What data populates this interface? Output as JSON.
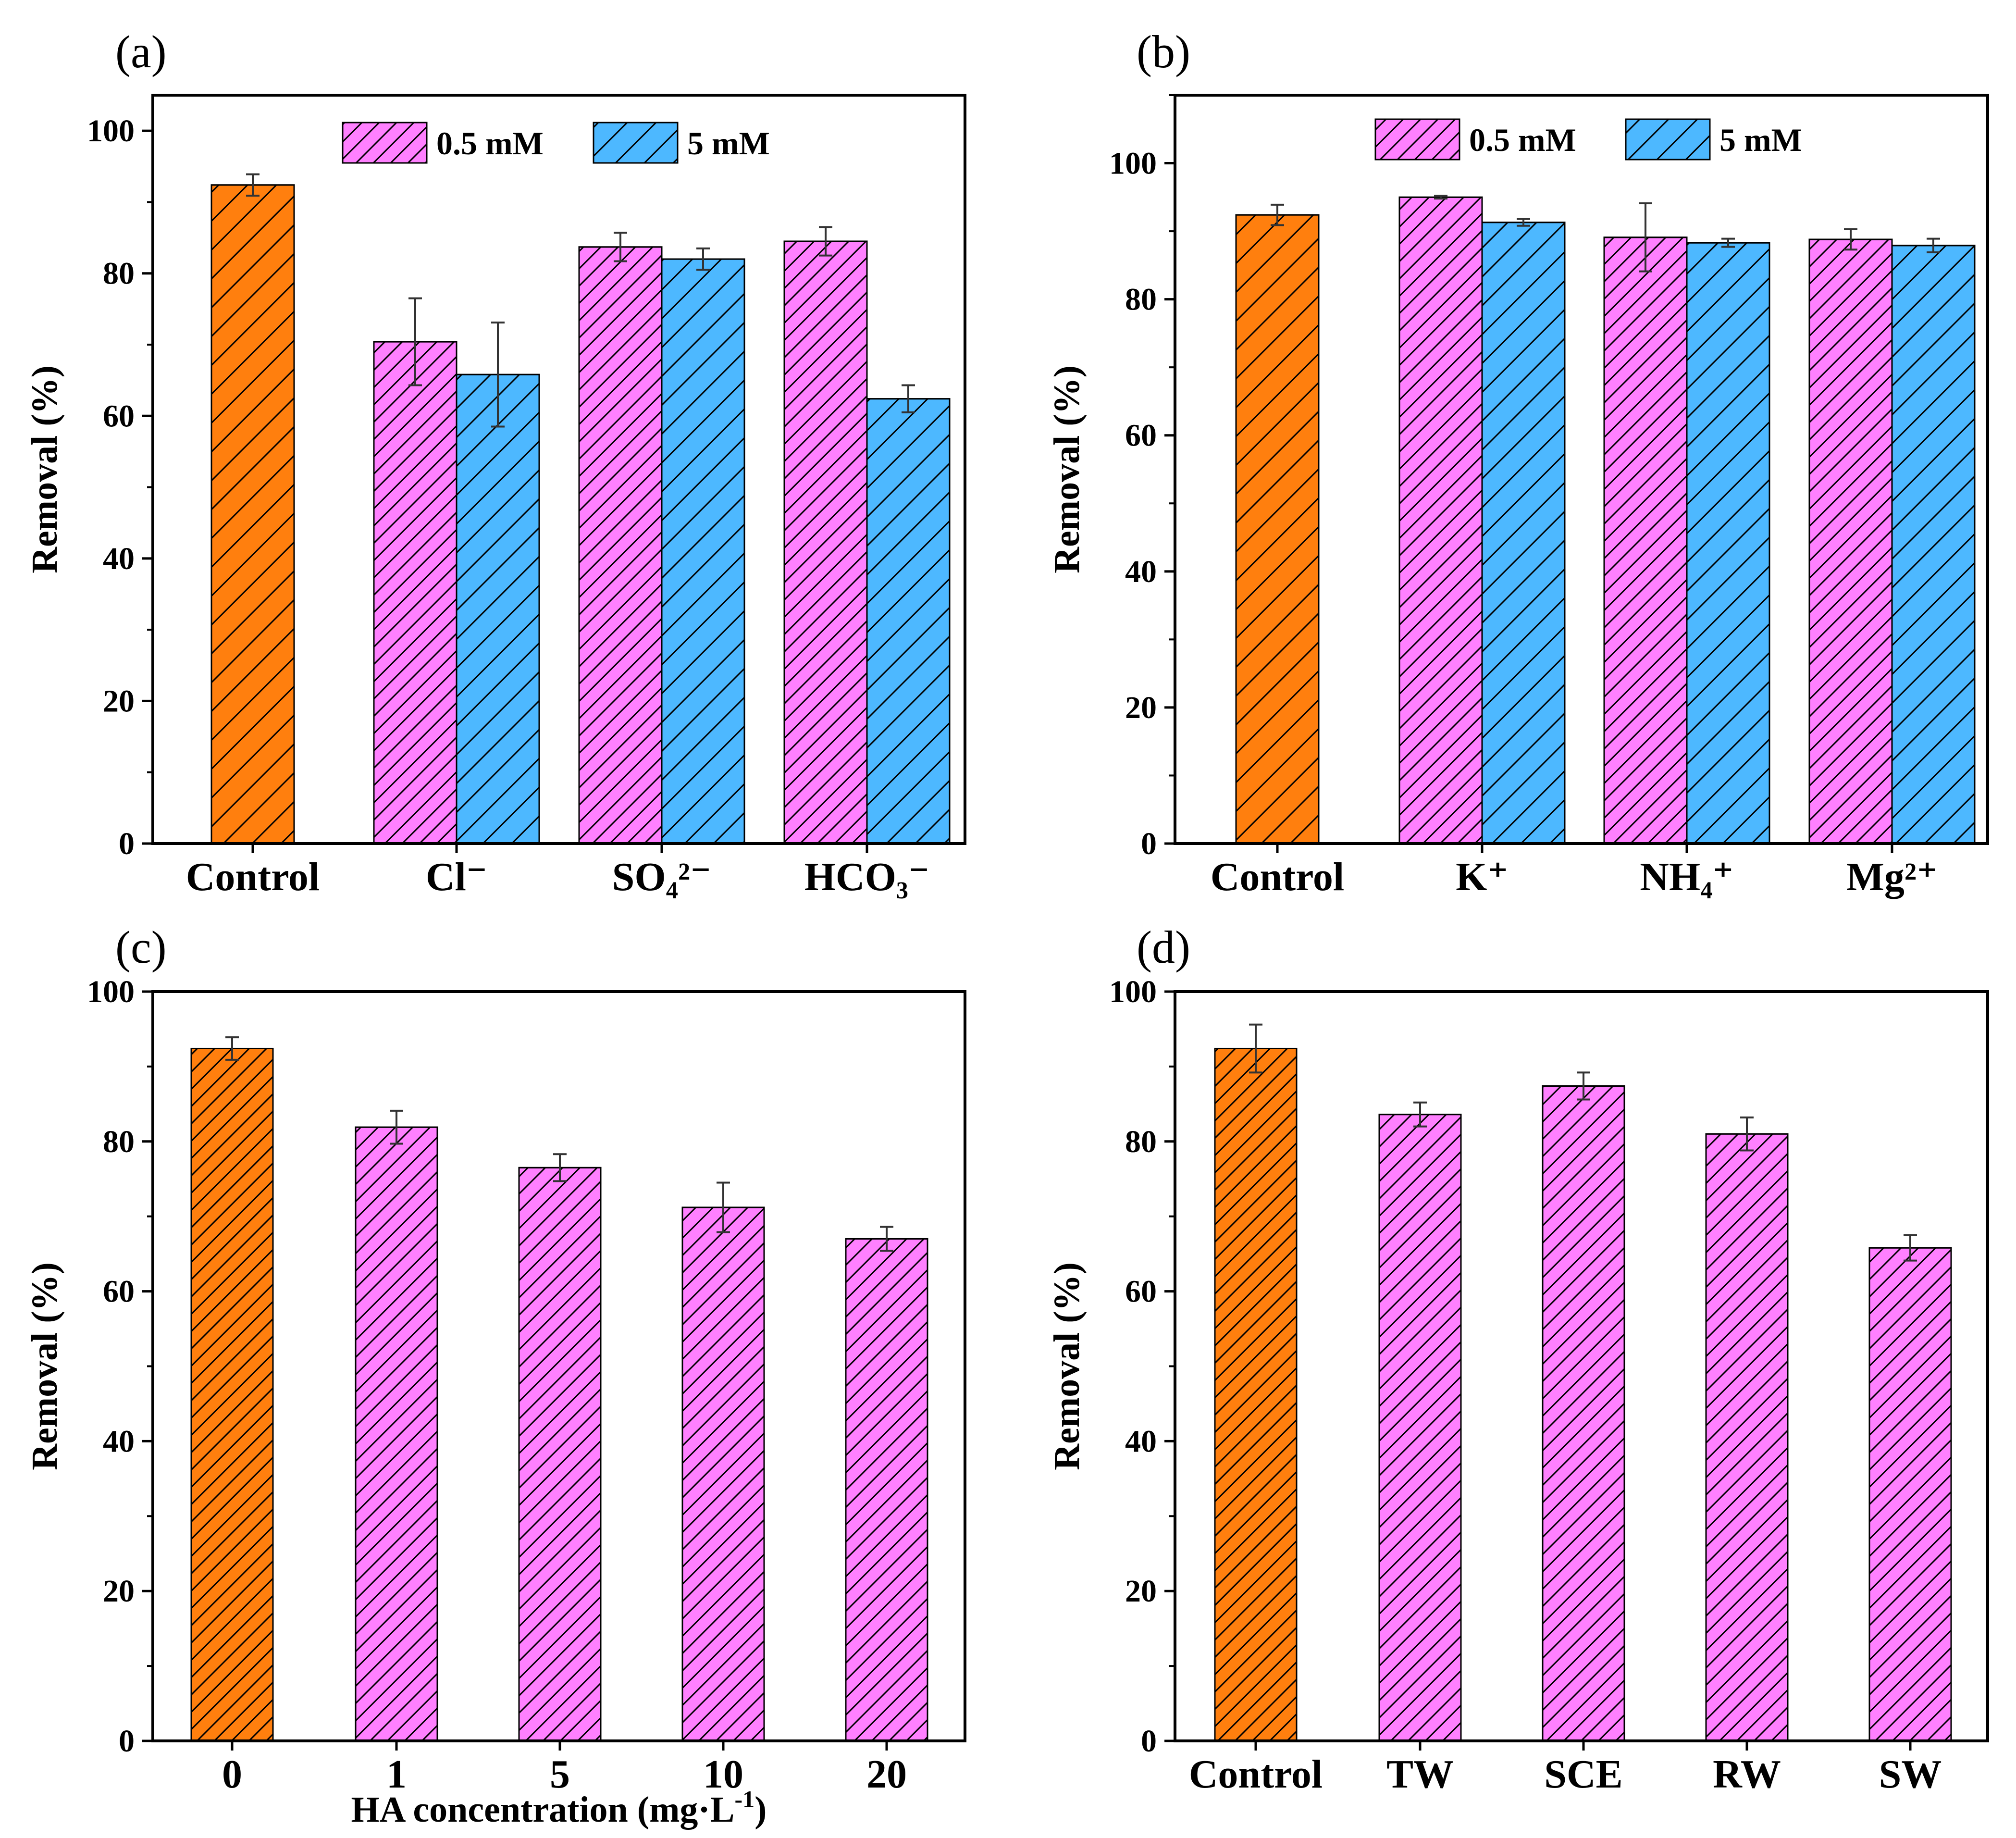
{
  "colors": {
    "control": "#ff7f0e",
    "low": "#ff80ff",
    "high": "#4db8ff",
    "axis": "#000000",
    "hatch": "#000000"
  },
  "chart_data": [
    {
      "id": "a",
      "panel": "(a)",
      "type": "bar",
      "ylabel": "Removal (%)",
      "xlabel": "",
      "ylim": [
        0,
        105
      ],
      "yticks": [
        0,
        20,
        40,
        60,
        80,
        100
      ],
      "legend": [
        "0.5 mM",
        "5 mM"
      ],
      "legend_position": "top-center",
      "categories": [
        "Control",
        "Cl⁻",
        "SO₄²⁻",
        "HCO₃⁻"
      ],
      "bars": [
        {
          "category": 0,
          "series": "control",
          "value": 92.4,
          "error": 1.5
        },
        {
          "category": 1,
          "series": "0.5 mM",
          "value": 70.4,
          "error": 6.1
        },
        {
          "category": 1,
          "series": "5 mM",
          "value": 65.8,
          "error": 7.3
        },
        {
          "category": 2,
          "series": "0.5 mM",
          "value": 83.7,
          "error": 2.0
        },
        {
          "category": 2,
          "series": "5 mM",
          "value": 82.0,
          "error": 1.5
        },
        {
          "category": 3,
          "series": "0.5 mM",
          "value": 84.5,
          "error": 2.0
        },
        {
          "category": 3,
          "series": "5 mM",
          "value": 62.4,
          "error": 1.9
        }
      ]
    },
    {
      "id": "b",
      "panel": "(b)",
      "type": "bar",
      "ylabel": "Removal (%)",
      "xlabel": "",
      "ylim": [
        0,
        110
      ],
      "yticks": [
        0,
        20,
        40,
        60,
        80,
        100
      ],
      "legend": [
        "0.5 mM",
        "5 mM"
      ],
      "legend_position": "top-center",
      "categories": [
        "Control",
        "K⁺",
        "NH₄⁺",
        "Mg²⁺"
      ],
      "bars": [
        {
          "category": 0,
          "series": "control",
          "value": 92.4,
          "error": 1.5
        },
        {
          "category": 1,
          "series": "0.5 mM",
          "value": 95.0,
          "error": 0.2
        },
        {
          "category": 1,
          "series": "5 mM",
          "value": 91.3,
          "error": 0.5
        },
        {
          "category": 2,
          "series": "0.5 mM",
          "value": 89.1,
          "error": 5.0
        },
        {
          "category": 2,
          "series": "5 mM",
          "value": 88.3,
          "error": 0.6
        },
        {
          "category": 3,
          "series": "0.5 mM",
          "value": 88.8,
          "error": 1.5
        },
        {
          "category": 3,
          "series": "5 mM",
          "value": 87.9,
          "error": 1.0
        }
      ]
    },
    {
      "id": "c",
      "panel": "(c)",
      "type": "bar",
      "ylabel": "Removal (%)",
      "xlabel_prefix": "HA concentration (mg·L",
      "xlabel_sup": "-1",
      "xlabel_suffix": ")",
      "ylim": [
        0,
        100
      ],
      "yticks": [
        0,
        20,
        40,
        60,
        80,
        100
      ],
      "categories": [
        "0",
        "1",
        "5",
        "10",
        "20"
      ],
      "bars": [
        {
          "category": 0,
          "series": "control",
          "value": 92.4,
          "error": 1.5
        },
        {
          "category": 1,
          "series": "0.5 mM",
          "value": 81.9,
          "error": 2.2
        },
        {
          "category": 2,
          "series": "0.5 mM",
          "value": 76.5,
          "error": 1.8
        },
        {
          "category": 3,
          "series": "0.5 mM",
          "value": 71.2,
          "error": 3.3
        },
        {
          "category": 4,
          "series": "0.5 mM",
          "value": 67.0,
          "error": 1.6
        }
      ]
    },
    {
      "id": "d",
      "panel": "(d)",
      "type": "bar",
      "ylabel": "Removal (%)",
      "xlabel": "",
      "ylim": [
        0,
        100
      ],
      "yticks": [
        0,
        20,
        40,
        60,
        80,
        100
      ],
      "categories": [
        "Control",
        "TW",
        "SCE",
        "RW",
        "SW"
      ],
      "bars": [
        {
          "category": 0,
          "series": "control",
          "value": 92.4,
          "error": 3.2
        },
        {
          "category": 1,
          "series": "0.5 mM",
          "value": 83.6,
          "error": 1.6
        },
        {
          "category": 2,
          "series": "0.5 mM",
          "value": 87.4,
          "error": 1.8
        },
        {
          "category": 3,
          "series": "0.5 mM",
          "value": 81.0,
          "error": 2.2
        },
        {
          "category": 4,
          "series": "0.5 mM",
          "value": 65.8,
          "error": 1.7
        }
      ]
    }
  ]
}
